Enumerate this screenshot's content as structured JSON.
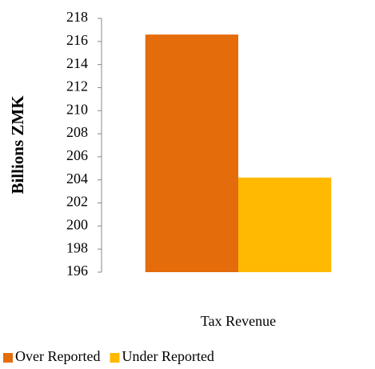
{
  "chart_data": {
    "type": "bar",
    "y_label": "Billions ZMK",
    "categories": [
      "Tax Revenue"
    ],
    "series": [
      {
        "name": "Over Reported",
        "color": "#e46c0a",
        "values": [
          216.6
        ]
      },
      {
        "name": "Under Reported",
        "color": "#ffb900",
        "values": [
          204.2
        ]
      }
    ],
    "ylim": [
      196,
      218
    ],
    "yticks": [
      196,
      198,
      200,
      202,
      204,
      206,
      208,
      210,
      212,
      214,
      216,
      218
    ],
    "grid": false,
    "legend": "bottom"
  }
}
